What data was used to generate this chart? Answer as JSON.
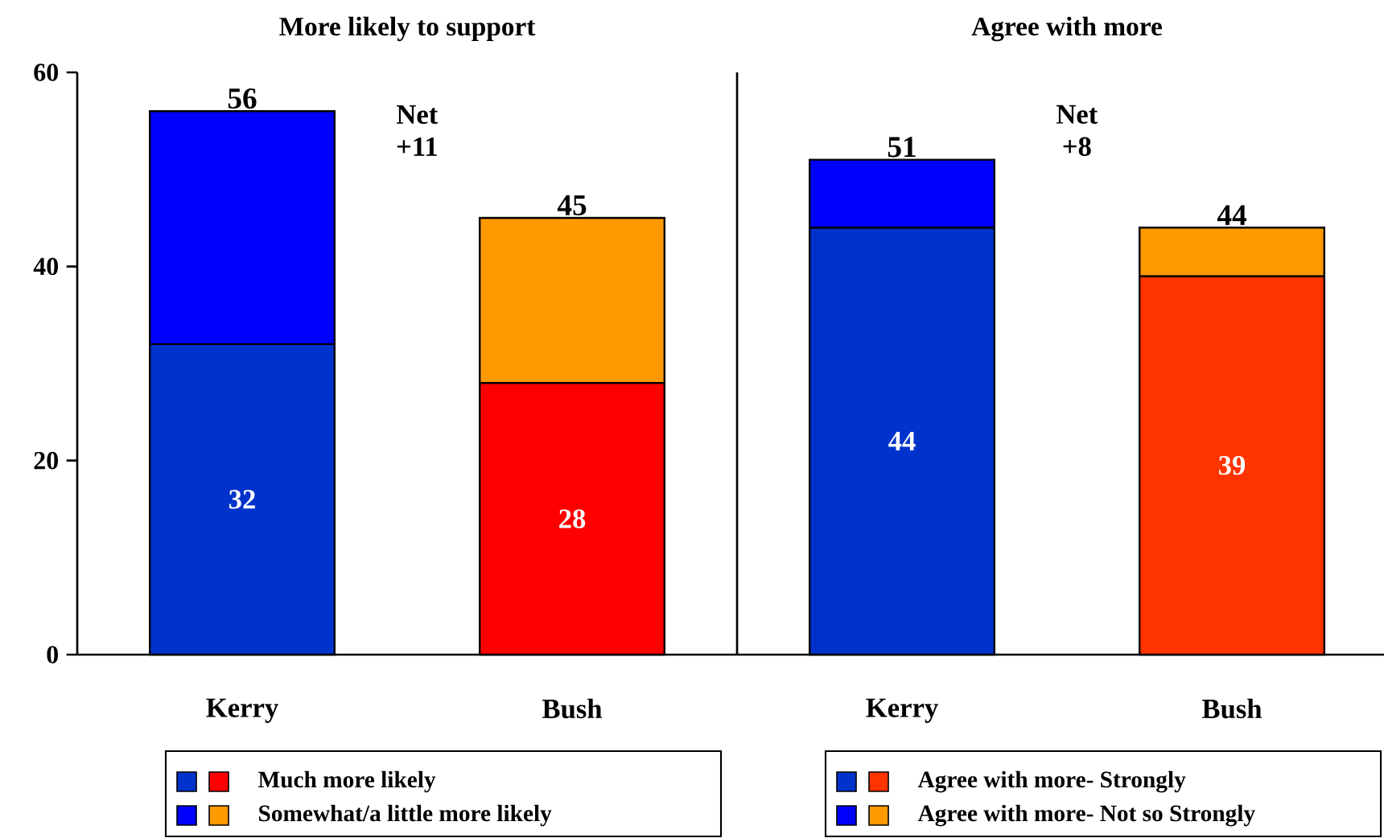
{
  "chart_data": [
    {
      "type": "bar",
      "title": "More likely to support",
      "categories": [
        "Kerry",
        "Bush"
      ],
      "stacked": true,
      "series": [
        {
          "name": "Much more likely",
          "colors": [
            "#0033cc",
            "#ff0000"
          ],
          "values": [
            32,
            28
          ],
          "value_labels": [
            "32",
            "28"
          ]
        },
        {
          "name": "Somewhat/a little more likely",
          "colors": [
            "#0000ff",
            "#ff9900"
          ],
          "values": [
            24,
            17
          ]
        }
      ],
      "totals": [
        "56",
        "45"
      ],
      "ylim": [
        0,
        60
      ],
      "yticks": [
        0,
        20,
        40,
        60
      ],
      "legend": "bottom",
      "annotations": [
        "Net +11"
      ]
    },
    {
      "type": "bar",
      "title": "Agree with more",
      "categories": [
        "Kerry",
        "Bush"
      ],
      "stacked": true,
      "series": [
        {
          "name": "Agree with more- Strongly",
          "colors": [
            "#0033cc",
            "#ff3300"
          ],
          "values": [
            44,
            39
          ],
          "value_labels": [
            "44",
            "39"
          ]
        },
        {
          "name": "Agree with more- Not  so Strongly",
          "colors": [
            "#0000ff",
            "#ff9900"
          ],
          "values": [
            7,
            5
          ]
        }
      ],
      "totals": [
        "51",
        "44"
      ],
      "ylim": [
        0,
        60
      ],
      "yticks": [
        0,
        20,
        40,
        60
      ],
      "tick_labels": "x",
      "legend": "bottom",
      "annotations": [
        "Net +8"
      ]
    }
  ]
}
